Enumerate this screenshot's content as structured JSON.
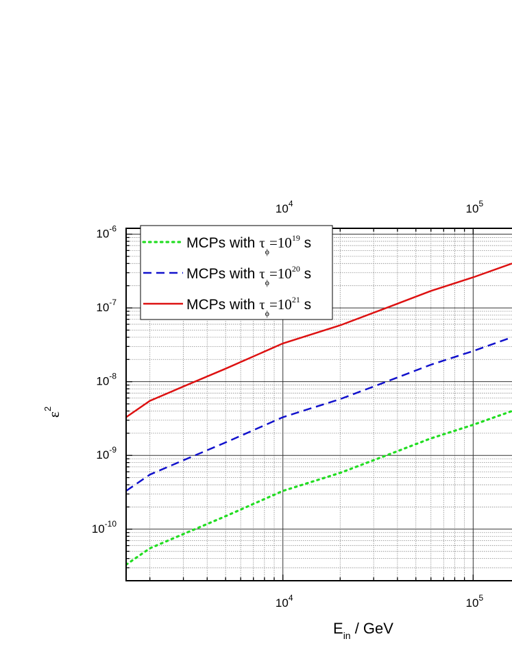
{
  "chart_data": {
    "type": "line",
    "xscale": "log",
    "yscale": "log",
    "xlim": [
      1500,
      160000
    ],
    "ylim": [
      2e-11,
      1.2e-06
    ],
    "grid": true,
    "xlabel": {
      "main": "E",
      "sub": "in",
      "rest": " / GeV"
    },
    "ylabel": {
      "main": "ε",
      "sup": "2"
    },
    "x_ticks": [
      {
        "value": 10000,
        "mant": "10",
        "exp": "4"
      },
      {
        "value": 100000,
        "mant": "10",
        "exp": "5"
      }
    ],
    "y_ticks": [
      {
        "value": 1e-10,
        "mant": "10",
        "exp": "-10"
      },
      {
        "value": 1e-09,
        "mant": "10",
        "exp": "-9"
      },
      {
        "value": 1e-08,
        "mant": "10",
        "exp": "-8"
      },
      {
        "value": 1e-07,
        "mant": "10",
        "exp": "-7"
      },
      {
        "value": 1e-06,
        "mant": "10",
        "exp": "-6"
      }
    ],
    "legend_position": "top-left",
    "series": [
      {
        "name": "MCPs with τϕ=10^19 s",
        "label": {
          "prefix": "MCPs with ",
          "tau": "τ",
          "sub": "ϕ",
          "eq": "=10",
          "sup": "19",
          "unit": " s"
        },
        "color": "#22dd22",
        "style": "dotted",
        "x": [
          1500,
          2000,
          3000,
          5000,
          10000,
          20000,
          35000,
          60000,
          100000,
          160000
        ],
        "y": [
          3.3e-11,
          5.5e-11,
          8.6e-11,
          1.5e-10,
          3.3e-10,
          5.8e-10,
          1e-09,
          1.7e-09,
          2.6e-09,
          4e-09
        ]
      },
      {
        "name": "MCPs with τϕ=10^20 s",
        "label": {
          "prefix": "MCPs with ",
          "tau": "τ",
          "sub": "ϕ",
          "eq": "=10",
          "sup": "20",
          "unit": " s"
        },
        "color": "#1111cc",
        "style": "dashed",
        "x": [
          1500,
          2000,
          3000,
          5000,
          10000,
          20000,
          35000,
          60000,
          100000,
          160000
        ],
        "y": [
          3.3e-10,
          5.5e-10,
          8.6e-10,
          1.5e-09,
          3.3e-09,
          5.8e-09,
          1e-08,
          1.7e-08,
          2.6e-08,
          4e-08
        ]
      },
      {
        "name": "MCPs with τϕ=10^21 s",
        "label": {
          "prefix": "MCPs with ",
          "tau": "τ",
          "sub": "ϕ",
          "eq": "=10",
          "sup": "21",
          "unit": " s"
        },
        "color": "#dd1111",
        "style": "solid",
        "x": [
          1500,
          2000,
          3000,
          5000,
          10000,
          20000,
          35000,
          60000,
          100000,
          160000
        ],
        "y": [
          3.3e-09,
          5.5e-09,
          8.6e-09,
          1.5e-08,
          3.3e-08,
          5.8e-08,
          1e-07,
          1.7e-07,
          2.6e-07,
          4e-07
        ]
      }
    ]
  }
}
